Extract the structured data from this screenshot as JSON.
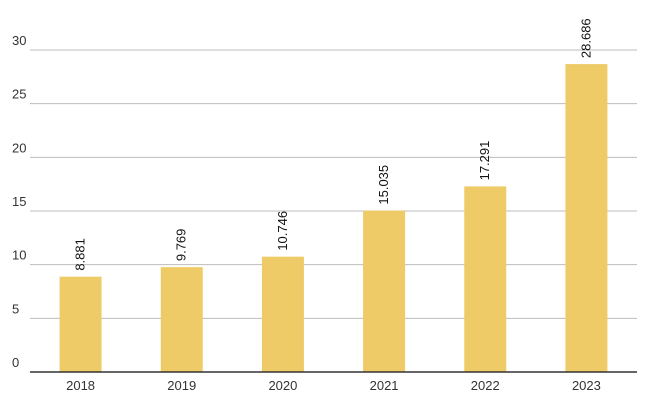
{
  "colors": {
    "bar": "#EFCB68",
    "grid": "#BDBDBD",
    "axis": "#333333",
    "text": "#333333",
    "background": "#FFFFFF"
  },
  "chart_data": {
    "type": "bar",
    "title": "",
    "xlabel": "",
    "ylabel": "",
    "categories": [
      "2018",
      "2019",
      "2020",
      "2021",
      "2022",
      "2023"
    ],
    "values": [
      8.881,
      9.769,
      10.746,
      15.035,
      17.291,
      28.686
    ],
    "data_labels": [
      "8.881",
      "9.769",
      "10.746",
      "15.035",
      "17.291",
      "28.686"
    ],
    "ylim": [
      0,
      30
    ],
    "yticks": [
      0,
      5,
      10,
      15,
      20,
      25,
      30
    ],
    "grid": true,
    "legend": "none",
    "data_label_orientation": "vertical"
  }
}
